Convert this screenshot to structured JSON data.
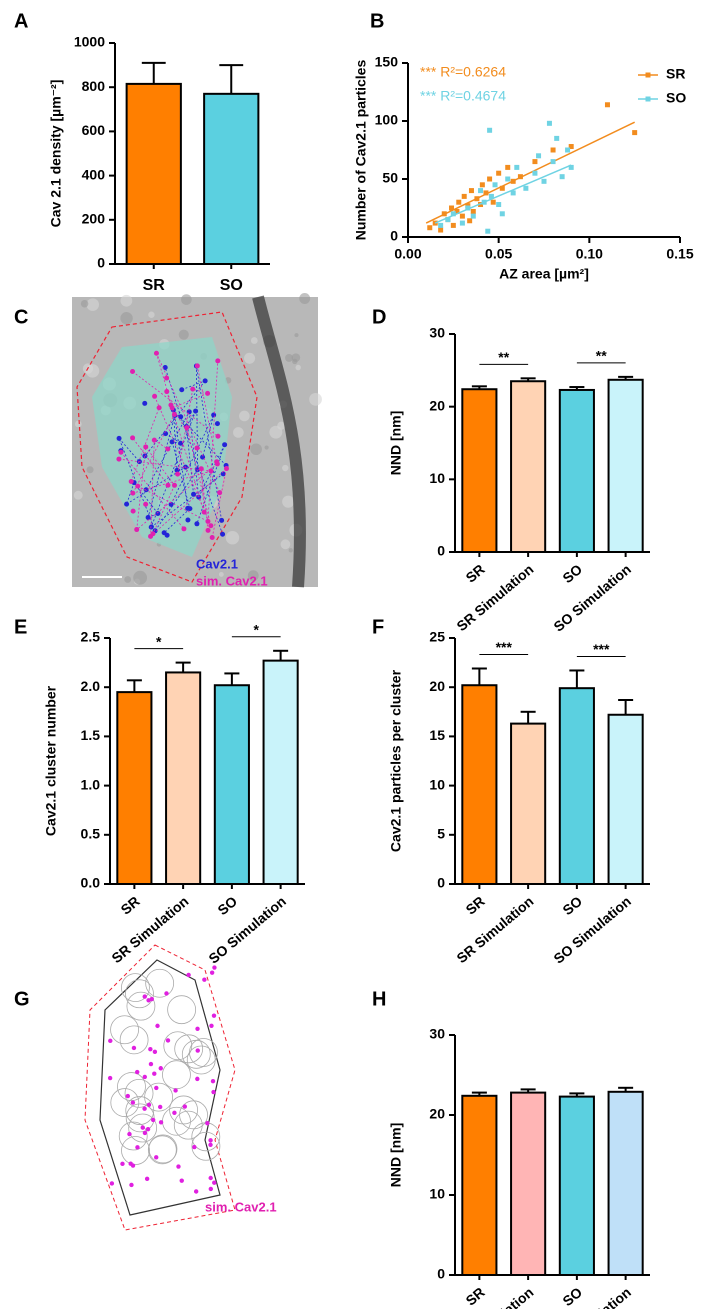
{
  "chart_data": [
    {
      "type": "bar",
      "panel": "A",
      "y_label": "Cav 2.1 density [µm⁻²]",
      "categories": [
        "SR",
        "SO"
      ],
      "values": [
        815,
        770
      ],
      "errors": [
        95,
        130
      ],
      "colors": [
        "#ff7f00",
        "#5bd0e0"
      ],
      "ylim": [
        0,
        1000
      ],
      "yticks": [
        0,
        200,
        400,
        600,
        800,
        1000
      ],
      "rotate_labels": false
    },
    {
      "type": "scatter",
      "panel": "B",
      "x_label": "AZ area [µm²]",
      "y_label": "Number of Cav2.1 particles",
      "xlim": [
        0,
        0.15
      ],
      "xticks": [
        {
          "value": 0,
          "label": "0.00"
        },
        0.05,
        {
          "value": 0.1,
          "label": "0.10"
        },
        0.15
      ],
      "ylim": [
        0,
        150
      ],
      "yticks": [
        0,
        50,
        100,
        150
      ],
      "legend": "top-right",
      "annotations": [
        {
          "text": "*** R²=0.6264",
          "color": "#f28c1e"
        },
        {
          "text": "*** R²=0.4674",
          "color": "#6fd3e3"
        }
      ],
      "series": [
        {
          "name": "SR",
          "color": "#f28c1e",
          "x": [
            0.012,
            0.015,
            0.018,
            0.02,
            0.022,
            0.024,
            0.025,
            0.027,
            0.028,
            0.03,
            0.031,
            0.033,
            0.034,
            0.035,
            0.036,
            0.038,
            0.04,
            0.041,
            0.043,
            0.045,
            0.047,
            0.05,
            0.052,
            0.055,
            0.058,
            0.062,
            0.07,
            0.08,
            0.09,
            0.11,
            0.125
          ],
          "values": [
            8,
            12,
            6,
            20,
            15,
            25,
            10,
            22,
            30,
            18,
            35,
            27,
            14,
            40,
            22,
            33,
            28,
            45,
            38,
            50,
            30,
            55,
            42,
            60,
            48,
            52,
            65,
            75,
            78,
            114,
            90
          ],
          "fit_x": [
            0.01,
            0.125
          ],
          "fit_y": [
            12,
            99
          ]
        },
        {
          "name": "SO",
          "color": "#6fd3e3",
          "x": [
            0.018,
            0.022,
            0.025,
            0.03,
            0.033,
            0.036,
            0.04,
            0.042,
            0.044,
            0.046,
            0.048,
            0.05,
            0.055,
            0.058,
            0.06,
            0.065,
            0.07,
            0.072,
            0.075,
            0.078,
            0.08,
            0.082,
            0.085,
            0.088,
            0.09,
            0.045,
            0.052
          ],
          "values": [
            10,
            15,
            20,
            12,
            25,
            18,
            40,
            30,
            5,
            35,
            45,
            28,
            50,
            38,
            60,
            42,
            55,
            70,
            48,
            98,
            65,
            85,
            52,
            75,
            60,
            92,
            20
          ],
          "fit_x": [
            0.015,
            0.09
          ],
          "fit_y": [
            12,
            62
          ]
        }
      ]
    },
    {
      "type": "image",
      "panel": "C",
      "labels": [
        {
          "text": "Cav2.1",
          "color": "#2424d8"
        },
        {
          "text": "sim. Cav2.1",
          "color": "#e020b0"
        }
      ]
    },
    {
      "type": "bar",
      "panel": "D",
      "y_label": "NND [nm]",
      "categories": [
        "SR",
        "SR Simulation",
        "SO",
        "SO Simulation"
      ],
      "values": [
        22.4,
        23.5,
        22.3,
        23.7
      ],
      "errors": [
        0.4,
        0.4,
        0.4,
        0.4
      ],
      "colors": [
        "#ff7f00",
        "#ffd3b4",
        "#5bd0e0",
        "#c9f3fa"
      ],
      "ylim": [
        0,
        30
      ],
      "yticks": [
        0,
        10,
        20,
        30
      ],
      "rotate_labels": true,
      "significance": [
        {
          "text": "**",
          "from": "SR",
          "to": "SR Simulation"
        },
        {
          "text": "**",
          "from": "SO",
          "to": "SO Simulation"
        }
      ]
    },
    {
      "type": "bar",
      "panel": "E",
      "y_label": "Cav2.1 cluster number",
      "categories": [
        "SR",
        "SR Simulation",
        "SO",
        "SO Simulation"
      ],
      "values": [
        1.95,
        2.15,
        2.02,
        2.27
      ],
      "errors": [
        0.12,
        0.1,
        0.12,
        0.1
      ],
      "colors": [
        "#ff7f00",
        "#ffd3b4",
        "#5bd0e0",
        "#c9f3fa"
      ],
      "ylim": [
        0,
        2.5
      ],
      "yticks": [
        {
          "value": 0,
          "label": "0.0"
        },
        0.5,
        {
          "value": 1,
          "label": "1.0"
        },
        1.5,
        {
          "value": 2,
          "label": "2.0"
        },
        2.5
      ],
      "rotate_labels": true,
      "significance": [
        {
          "text": "*",
          "from": "SR",
          "to": "SR Simulation"
        },
        {
          "text": "*",
          "from": "SO",
          "to": "SO Simulation"
        }
      ]
    },
    {
      "type": "bar",
      "panel": "F",
      "y_label": "Cav2.1 particles per cluster",
      "categories": [
        "SR",
        "SR Simulation",
        "SO",
        "SO Simulation"
      ],
      "values": [
        20.2,
        16.3,
        19.9,
        17.2
      ],
      "errors": [
        1.7,
        1.2,
        1.8,
        1.5
      ],
      "colors": [
        "#ff7f00",
        "#ffd3b4",
        "#5bd0e0",
        "#c9f3fa"
      ],
      "ylim": [
        0,
        25
      ],
      "yticks": [
        0,
        5,
        10,
        15,
        20,
        25
      ],
      "rotate_labels": true,
      "significance": [
        {
          "text": "***",
          "from": "SR",
          "to": "SR Simulation"
        },
        {
          "text": "***",
          "from": "SO",
          "to": "SO Simulation"
        }
      ]
    },
    {
      "type": "image",
      "panel": "G",
      "labels": [
        {
          "text": "sim. Cav2.1",
          "color": "#e020b0"
        }
      ]
    },
    {
      "type": "bar",
      "panel": "H",
      "y_label": "NND [nm]",
      "categories": [
        "SR",
        "SR Simulation",
        "SO",
        "SO Simulation"
      ],
      "values": [
        22.4,
        22.8,
        22.3,
        22.9
      ],
      "errors": [
        0.4,
        0.4,
        0.4,
        0.5
      ],
      "colors": [
        "#ff7f00",
        "#ffb5b5",
        "#5bd0e0",
        "#bfe0f8"
      ],
      "ylim": [
        0,
        30
      ],
      "yticks": [
        0,
        10,
        20,
        30
      ],
      "rotate_labels": true
    }
  ]
}
